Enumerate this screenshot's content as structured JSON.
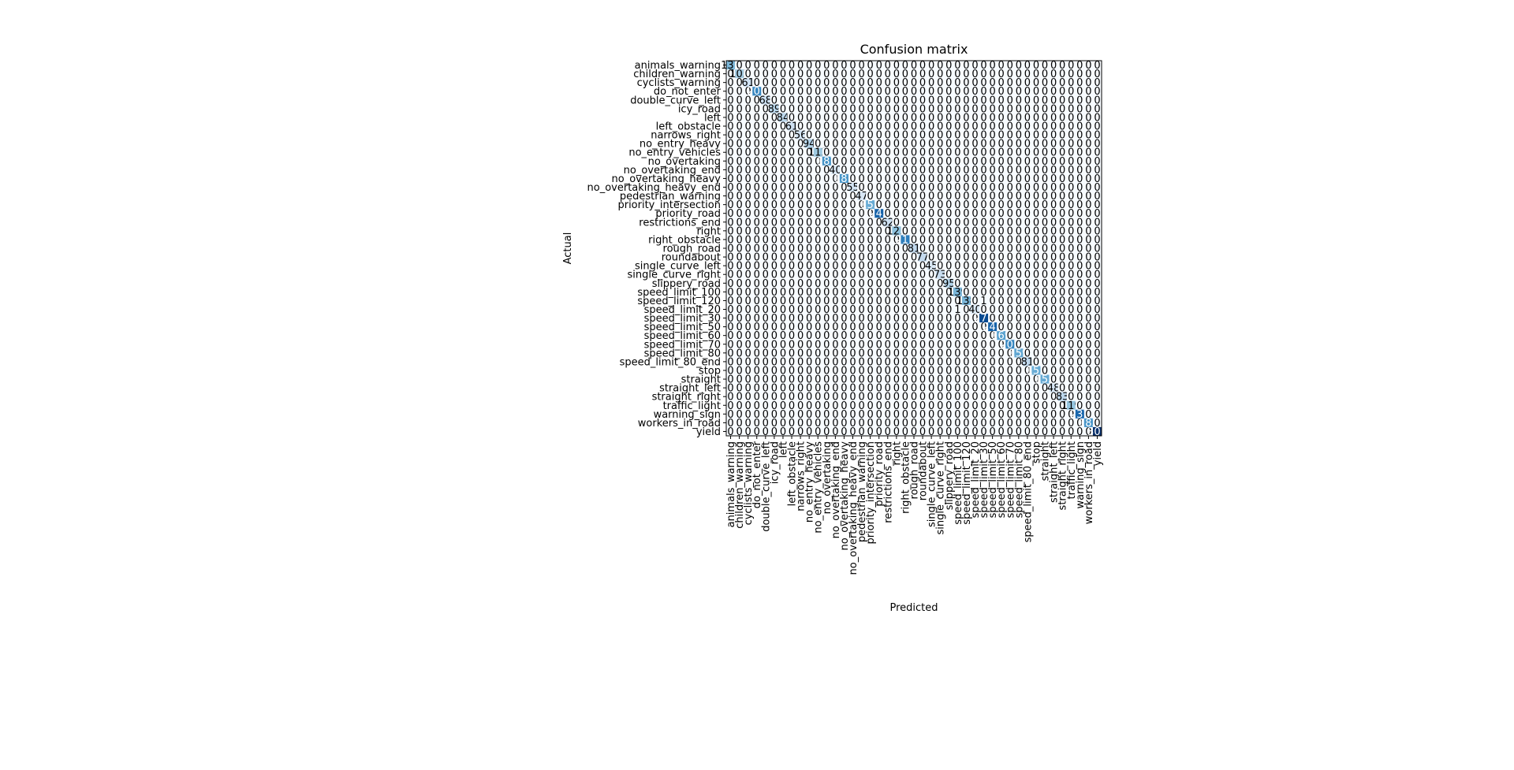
{
  "chart_data": {
    "type": "heatmap",
    "title": "Confusion matrix",
    "xlabel": "Predicted",
    "ylabel": "Actual",
    "colormap": "Blues",
    "colorscale_max": 300,
    "labels": [
      "animals_warning",
      "children_warning",
      "cyclists_warning",
      "do_not_enter",
      "double_curve_left",
      "icy_road",
      "left",
      "left_obstacle",
      "narrows_right",
      "no_entry_heavy",
      "no_entry_vehicles",
      "no_overtaking",
      "no_overtaking_end",
      "no_overtaking_heavy",
      "no_overtaking_heavy_end",
      "pedestrian_warning",
      "priority_intersection",
      "priority_road",
      "restrictions_end",
      "right",
      "right_obstacle",
      "rough_road",
      "roundabout",
      "single_curve_left",
      "single_curve_right",
      "slippery_road",
      "speed_limit_100",
      "speed_limit_120",
      "speed_limit_20",
      "speed_limit_30",
      "speed_limit_50",
      "speed_limit_60",
      "speed_limit_70",
      "speed_limit_80",
      "speed_limit_80_end",
      "stop",
      "straight",
      "straight_left",
      "straight_right",
      "traffic_light",
      "warning_sign",
      "workers_in_road",
      "yield"
    ],
    "diagonal": [
      137,
      105,
      61,
      201,
      68,
      89,
      84,
      61,
      56,
      94,
      112,
      187,
      40,
      181,
      55,
      47,
      153,
      243,
      62,
      125,
      211,
      81,
      77,
      45,
      73,
      95,
      139,
      138,
      40,
      271,
      241,
      169,
      201,
      159,
      81,
      153,
      155,
      48,
      83,
      119,
      237,
      183,
      300
    ],
    "off_diagonal": [
      {
        "actual": "speed_limit_120",
        "predicted": "speed_limit_30",
        "value": 1
      },
      {
        "actual": "speed_limit_20",
        "predicted": "speed_limit_100",
        "value": 1
      }
    ]
  }
}
